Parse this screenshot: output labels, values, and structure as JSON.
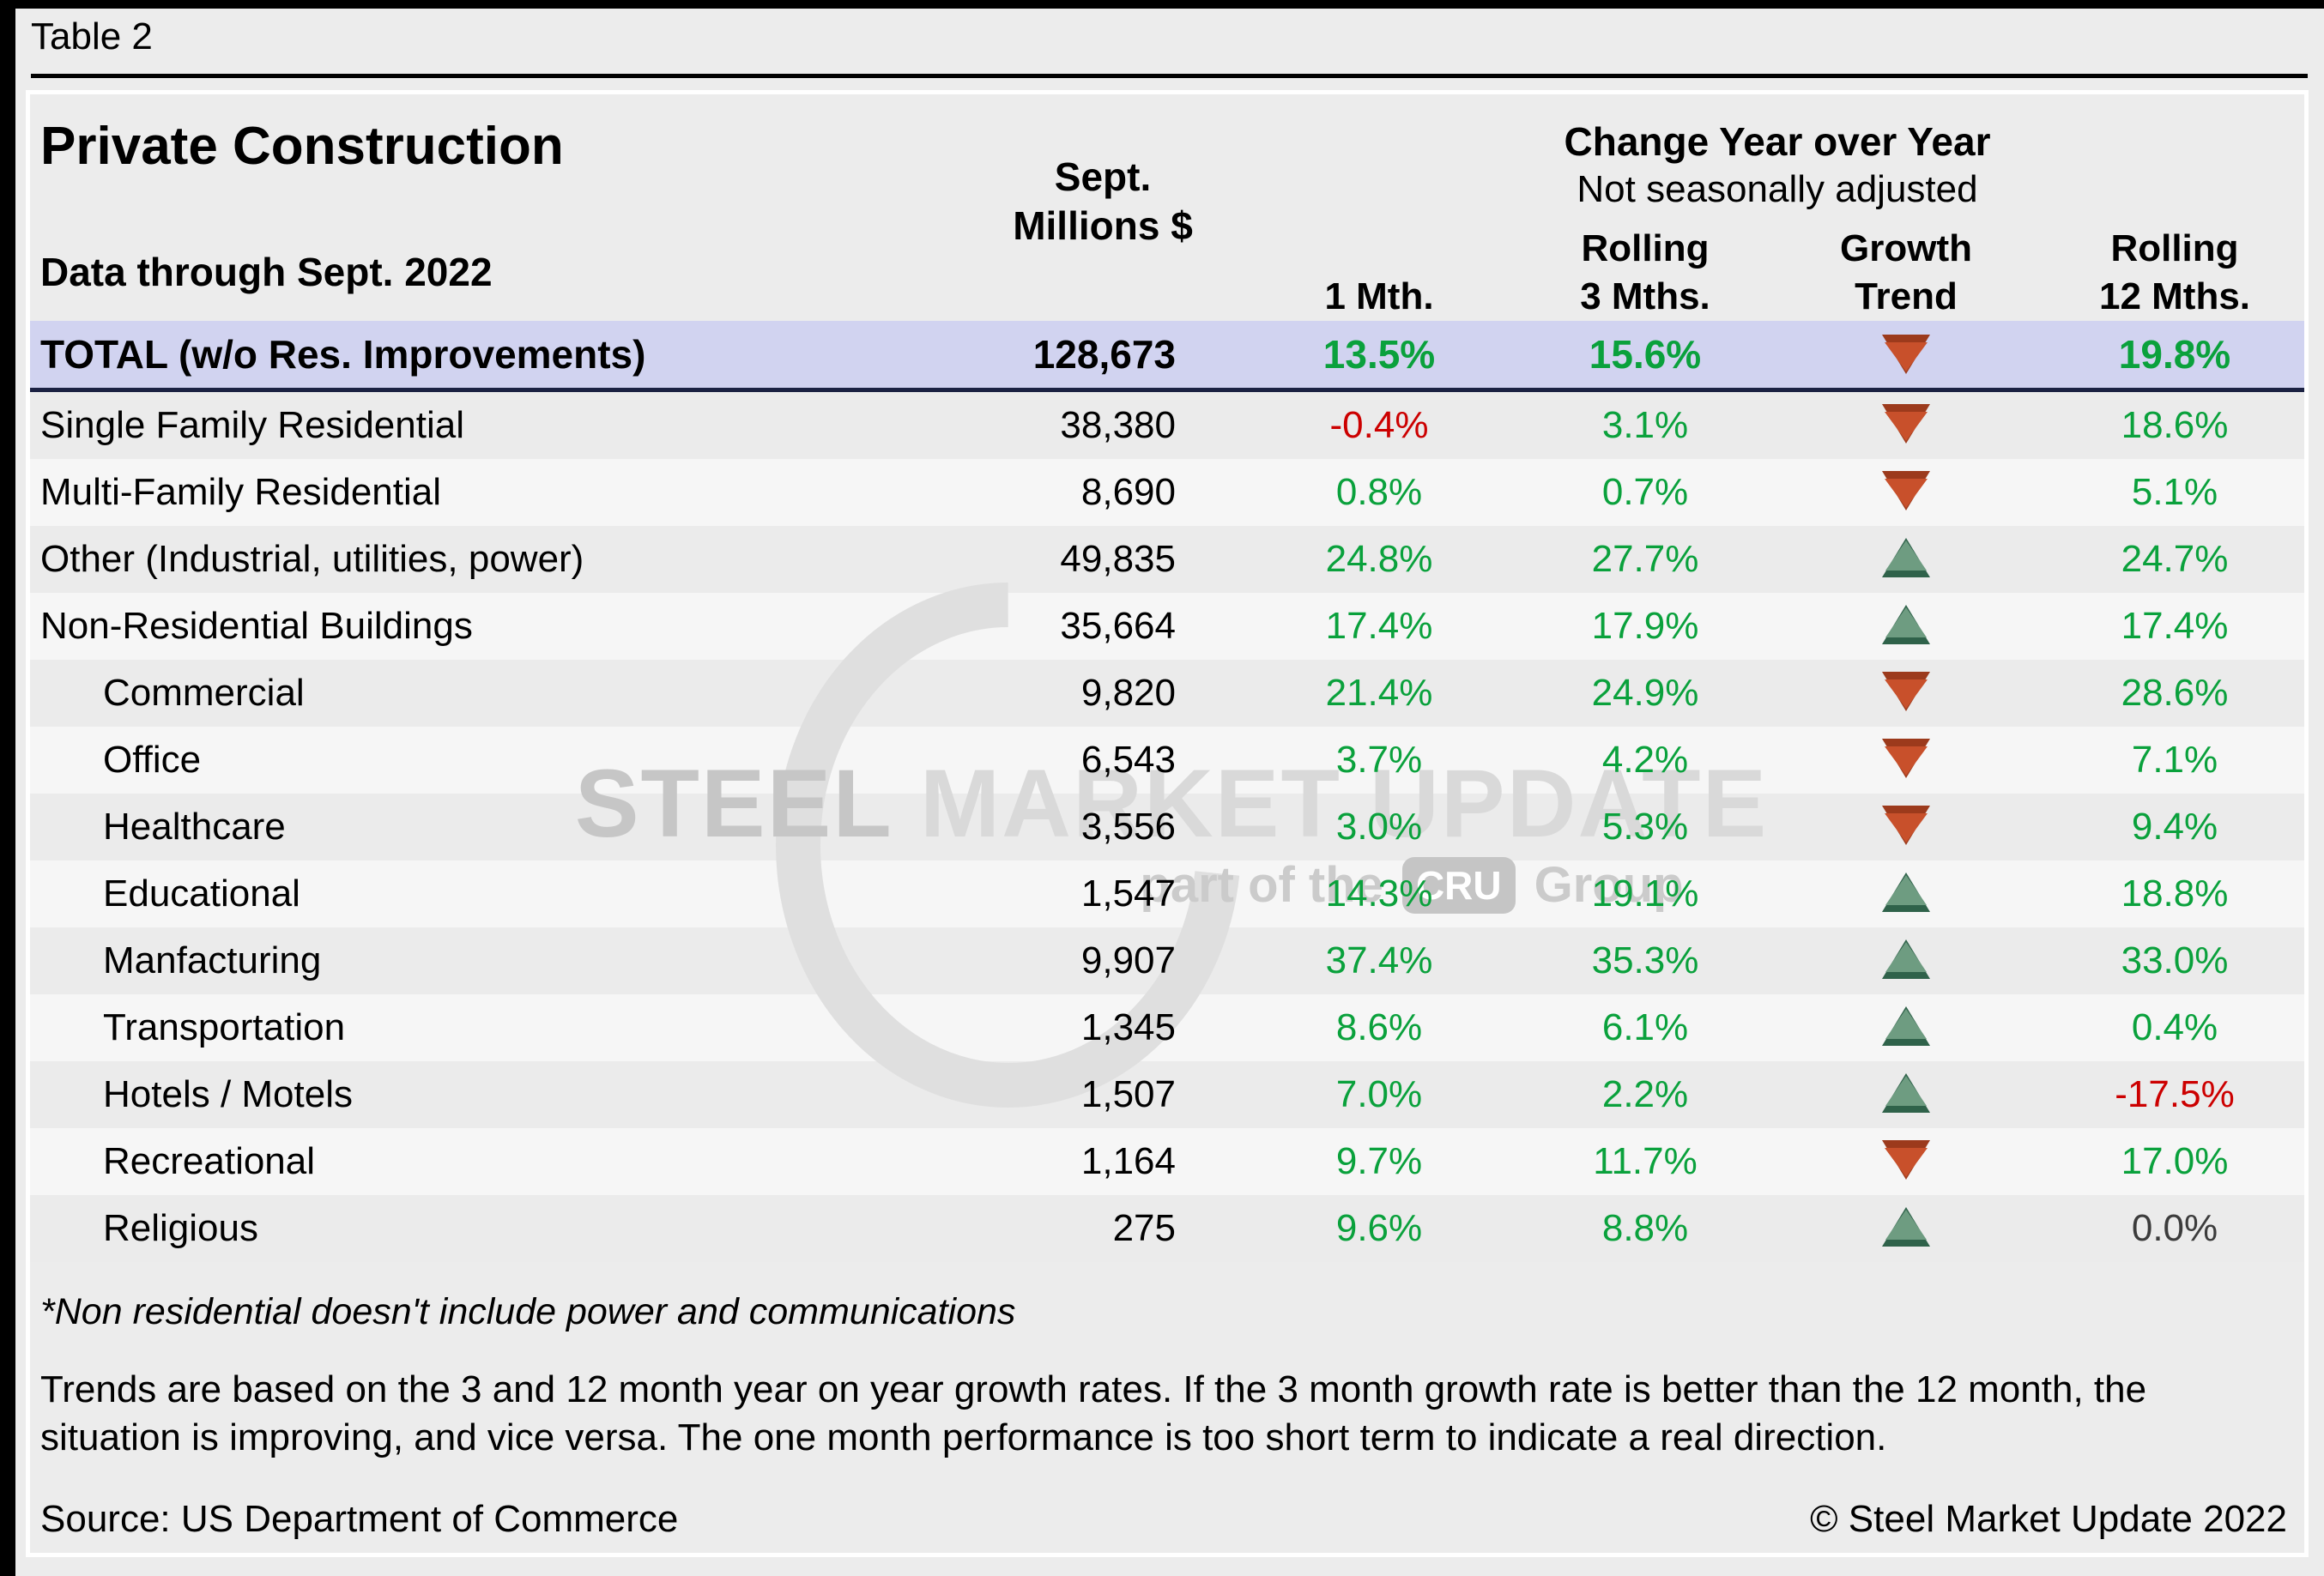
{
  "page": {
    "table_label": "Table 2",
    "copyright": "© Steel Market Update 2022"
  },
  "header": {
    "title": "Private Construction",
    "subtitle": "Data through Sept. 2022",
    "change_yoy": "Change Year over Year",
    "not_seasonal": "Not seasonally adjusted"
  },
  "columns": {
    "millions_line1": "Sept.",
    "millions_line2": "Millions $",
    "m1": "1 Mth.",
    "r3_line1": "Rolling",
    "r3_line2": "3 Mths.",
    "trend_line1": "Growth",
    "trend_line2": "Trend",
    "r12_line1": "Rolling",
    "r12_line2": "12 Mths."
  },
  "total_row": {
    "label": "TOTAL (w/o Res. Improvements)",
    "millions": "128,673",
    "m1": "13.5%",
    "m1_color": "green",
    "r3": "15.6%",
    "r3_color": "green",
    "trend": "down",
    "r12": "19.8%",
    "r12_color": "green"
  },
  "rows": [
    {
      "label": "Single Family Residential",
      "indent": false,
      "millions": "38,380",
      "m1": "-0.4%",
      "m1_color": "red",
      "r3": "3.1%",
      "r3_color": "green",
      "trend": "down",
      "r12": "18.6%",
      "r12_color": "green"
    },
    {
      "label": "Multi-Family Residential",
      "indent": false,
      "millions": "8,690",
      "m1": "0.8%",
      "m1_color": "green",
      "r3": "0.7%",
      "r3_color": "green",
      "trend": "down",
      "r12": "5.1%",
      "r12_color": "green"
    },
    {
      "label": "Other (Industrial, utilities, power)",
      "indent": false,
      "millions": "49,835",
      "m1": "24.8%",
      "m1_color": "green",
      "r3": "27.7%",
      "r3_color": "green",
      "trend": "up",
      "r12": "24.7%",
      "r12_color": "green"
    },
    {
      "label": "Non-Residential Buildings",
      "indent": false,
      "millions": "35,664",
      "m1": "17.4%",
      "m1_color": "green",
      "r3": "17.9%",
      "r3_color": "green",
      "trend": "up",
      "r12": "17.4%",
      "r12_color": "green"
    },
    {
      "label": "Commercial",
      "indent": true,
      "millions": "9,820",
      "m1": "21.4%",
      "m1_color": "green",
      "r3": "24.9%",
      "r3_color": "green",
      "trend": "down",
      "r12": "28.6%",
      "r12_color": "green"
    },
    {
      "label": "Office",
      "indent": true,
      "millions": "6,543",
      "m1": "3.7%",
      "m1_color": "green",
      "r3": "4.2%",
      "r3_color": "green",
      "trend": "down",
      "r12": "7.1%",
      "r12_color": "green"
    },
    {
      "label": "Healthcare",
      "indent": true,
      "millions": "3,556",
      "m1": "3.0%",
      "m1_color": "green",
      "r3": "5.3%",
      "r3_color": "green",
      "trend": "down",
      "r12": "9.4%",
      "r12_color": "green"
    },
    {
      "label": "Educational",
      "indent": true,
      "millions": "1,547",
      "m1": "14.3%",
      "m1_color": "green",
      "r3": "19.1%",
      "r3_color": "green",
      "trend": "up",
      "r12": "18.8%",
      "r12_color": "green"
    },
    {
      "label": "Manfacturing",
      "indent": true,
      "millions": "9,907",
      "m1": "37.4%",
      "m1_color": "green",
      "r3": "35.3%",
      "r3_color": "green",
      "trend": "up",
      "r12": "33.0%",
      "r12_color": "green"
    },
    {
      "label": "Transportation",
      "indent": true,
      "millions": "1,345",
      "m1": "8.6%",
      "m1_color": "green",
      "r3": "6.1%",
      "r3_color": "green",
      "trend": "up",
      "r12": "0.4%",
      "r12_color": "green"
    },
    {
      "label": "Hotels / Motels",
      "indent": true,
      "millions": "1,507",
      "m1": "7.0%",
      "m1_color": "green",
      "r3": "2.2%",
      "r3_color": "green",
      "trend": "up",
      "r12": "-17.5%",
      "r12_color": "red"
    },
    {
      "label": "Recreational",
      "indent": true,
      "millions": "1,164",
      "m1": "9.7%",
      "m1_color": "green",
      "r3": "11.7%",
      "r3_color": "green",
      "trend": "down",
      "r12": "17.0%",
      "r12_color": "green"
    },
    {
      "label": "Religious",
      "indent": true,
      "millions": "275",
      "m1": "9.6%",
      "m1_color": "green",
      "r3": "8.8%",
      "r3_color": "green",
      "trend": "up",
      "r12": "0.0%",
      "r12_color": "dark-val"
    }
  ],
  "footer": {
    "footnote": "*Non residential doesn't include power and communications",
    "trend_note": "Trends are based on the 3 and 12 month year on year growth rates. If the 3 month growth rate is better than the 12 month, the situation is improving, and vice versa. The one month performance is too short term to indicate a real direction.",
    "source": "Source: US Department of Commerce"
  },
  "watermark": {
    "steel": "STEEL ",
    "market_update": "MARKET UPDATE",
    "part_of": "part of the",
    "cru": "CRU",
    "group": "Group"
  },
  "colors": {
    "positive_green": "#0AA13C",
    "negative_red": "#CC0000",
    "neutral_dark": "#3C3C3C",
    "total_row_bg": "#D1D3F0",
    "total_row_border": "#1B2142",
    "arrow_down_fill": "#C8502B",
    "arrow_down_edge": "#9C3A1C",
    "arrow_up_fill": "#6E9C81",
    "arrow_up_edge": "#2F624A",
    "page_bg": "#ECECEC",
    "stripe_dark": "#EBEBEB",
    "stripe_light": "#F6F6F6"
  },
  "chart_data": {
    "type": "table",
    "title": "Private Construction",
    "subtitle": "Data through Sept. 2022",
    "columns": [
      "Sept. Millions $",
      "1 Mth.",
      "Rolling 3 Mths.",
      "Growth Trend",
      "Rolling 12 Mths."
    ],
    "rows": [
      [
        "TOTAL (w/o Res. Improvements)",
        128673,
        13.5,
        15.6,
        "down",
        19.8
      ],
      [
        "Single Family Residential",
        38380,
        -0.4,
        3.1,
        "down",
        18.6
      ],
      [
        "Multi-Family Residential",
        8690,
        0.8,
        0.7,
        "down",
        5.1
      ],
      [
        "Other (Industrial, utilities, power)",
        49835,
        24.8,
        27.7,
        "up",
        24.7
      ],
      [
        "Non-Residential Buildings",
        35664,
        17.4,
        17.9,
        "up",
        17.4
      ],
      [
        "Commercial",
        9820,
        21.4,
        24.9,
        "down",
        28.6
      ],
      [
        "Office",
        6543,
        3.7,
        4.2,
        "down",
        7.1
      ],
      [
        "Healthcare",
        3556,
        3.0,
        5.3,
        "down",
        9.4
      ],
      [
        "Educational",
        1547,
        14.3,
        19.1,
        "up",
        18.8
      ],
      [
        "Manfacturing",
        9907,
        37.4,
        35.3,
        "up",
        33.0
      ],
      [
        "Transportation",
        1345,
        8.6,
        6.1,
        "up",
        0.4
      ],
      [
        "Hotels / Motels",
        1507,
        7.0,
        2.2,
        "up",
        -17.5
      ],
      [
        "Recreational",
        1164,
        9.7,
        11.7,
        "down",
        17.0
      ],
      [
        "Religious",
        275,
        9.6,
        8.8,
        "up",
        0.0
      ]
    ],
    "notes": "Units: Millions $; percentage columns are year-over-year change, not seasonally adjusted"
  }
}
